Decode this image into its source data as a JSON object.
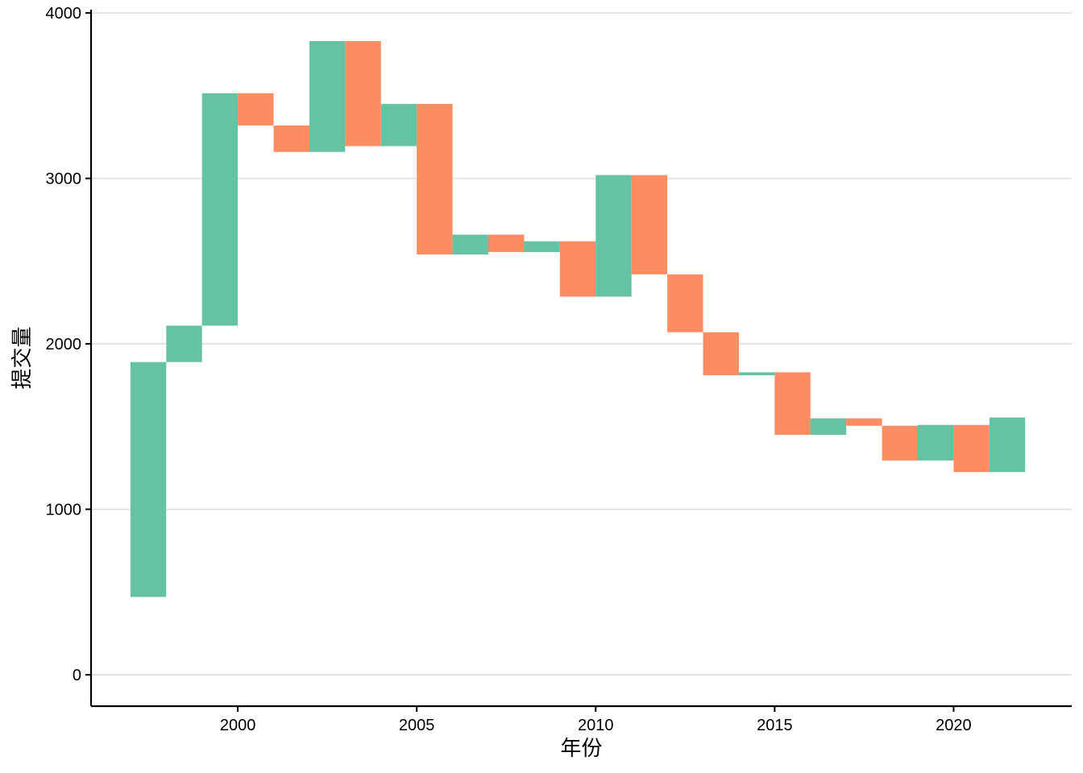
{
  "chart_data": {
    "type": "bar",
    "subtype": "waterfall",
    "title": "",
    "xlabel": "年份",
    "ylabel": "提交量",
    "x_ticks": [
      2000,
      2005,
      2010,
      2015,
      2020
    ],
    "y_ticks": [
      0,
      1000,
      2000,
      3000,
      4000
    ],
    "xlim": [
      1995.9,
      2023.3
    ],
    "ylim": [
      -190,
      4020
    ],
    "grid": "horizontal",
    "legend": "none",
    "colors": {
      "increase": "#66c2a5",
      "decrease": "#fc8d62"
    },
    "bars": [
      {
        "year": 1997,
        "start": 470,
        "end": 1890
      },
      {
        "year": 1998,
        "start": 1890,
        "end": 2110
      },
      {
        "year": 1999,
        "start": 2110,
        "end": 3515
      },
      {
        "year": 2000,
        "start": 3515,
        "end": 3320
      },
      {
        "year": 2001,
        "start": 3320,
        "end": 3160
      },
      {
        "year": 2002,
        "start": 3160,
        "end": 3830
      },
      {
        "year": 2003,
        "start": 3830,
        "end": 3195
      },
      {
        "year": 2004,
        "start": 3195,
        "end": 3450
      },
      {
        "year": 2005,
        "start": 3450,
        "end": 2540
      },
      {
        "year": 2006,
        "start": 2540,
        "end": 2660
      },
      {
        "year": 2007,
        "start": 2660,
        "end": 2555
      },
      {
        "year": 2008,
        "start": 2555,
        "end": 2620
      },
      {
        "year": 2009,
        "start": 2620,
        "end": 2285
      },
      {
        "year": 2010,
        "start": 2285,
        "end": 3020
      },
      {
        "year": 2011,
        "start": 3020,
        "end": 2420
      },
      {
        "year": 2012,
        "start": 2420,
        "end": 2070
      },
      {
        "year": 2013,
        "start": 2070,
        "end": 1810
      },
      {
        "year": 2014,
        "start": 1810,
        "end": 1828
      },
      {
        "year": 2015,
        "start": 1828,
        "end": 1450
      },
      {
        "year": 2016,
        "start": 1450,
        "end": 1550
      },
      {
        "year": 2017,
        "start": 1550,
        "end": 1505
      },
      {
        "year": 2018,
        "start": 1505,
        "end": 1295
      },
      {
        "year": 2019,
        "start": 1295,
        "end": 1510
      },
      {
        "year": 2020,
        "start": 1510,
        "end": 1225
      },
      {
        "year": 2021,
        "start": 1225,
        "end": 1555
      }
    ]
  }
}
